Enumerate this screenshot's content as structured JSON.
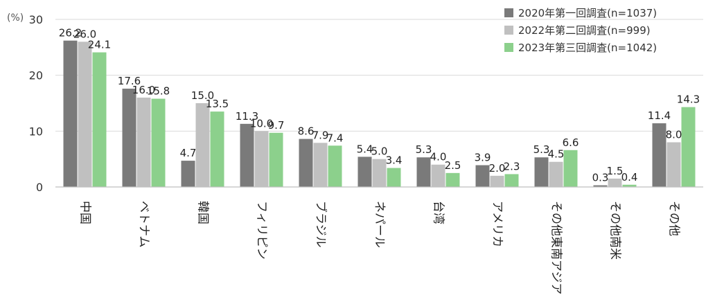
{
  "chart_data": {
    "type": "bar",
    "title": "",
    "xlabel": "",
    "ylabel": "(%)",
    "ylim": [
      0,
      30
    ],
    "yticks": [
      "0",
      "10",
      "20",
      "30"
    ],
    "grid": true,
    "legend_position": "top-right",
    "categories": [
      "中国",
      "ベトナム",
      "韓国",
      "フィリピン",
      "ブラジル",
      "ネパール",
      "台湾",
      "アメリカ",
      "その他東南アジア",
      "その他南米",
      "その他"
    ],
    "series": [
      {
        "name": "2020年第一回調査(n=1037)",
        "color": "#7a7a7a",
        "values": [
          26.2,
          17.6,
          4.7,
          11.3,
          8.6,
          5.4,
          5.3,
          3.9,
          5.3,
          0.3,
          11.4
        ],
        "labels": [
          "26.2",
          "17.6",
          "4.7",
          "11.3",
          "8.6",
          "5.4",
          "5.3",
          "3.9",
          "5.3",
          "0.3",
          "11.4"
        ]
      },
      {
        "name": "2022年第二回調査(n=999)",
        "color": "#c0c0c0",
        "values": [
          26.0,
          16.0,
          15.0,
          10.0,
          7.9,
          5.0,
          4.0,
          2.0,
          4.5,
          1.5,
          8.0
        ],
        "labels": [
          "26.0",
          "16.0",
          "15.0",
          "10.0",
          "7.9",
          "5.0",
          "4.0",
          "2.0",
          "4.5",
          "1.5",
          "8.0"
        ]
      },
      {
        "name": "2023年第三回調査(n=1042)",
        "color": "#8cd08c",
        "values": [
          24.1,
          15.8,
          13.5,
          9.7,
          7.4,
          3.4,
          2.5,
          2.3,
          6.6,
          0.4,
          14.3
        ],
        "labels": [
          "24.1",
          "15.8",
          "13.5",
          "9.7",
          "7.4",
          "3.4",
          "2.5",
          "2.3",
          "6.6",
          "0.4",
          "14.3"
        ]
      }
    ]
  }
}
